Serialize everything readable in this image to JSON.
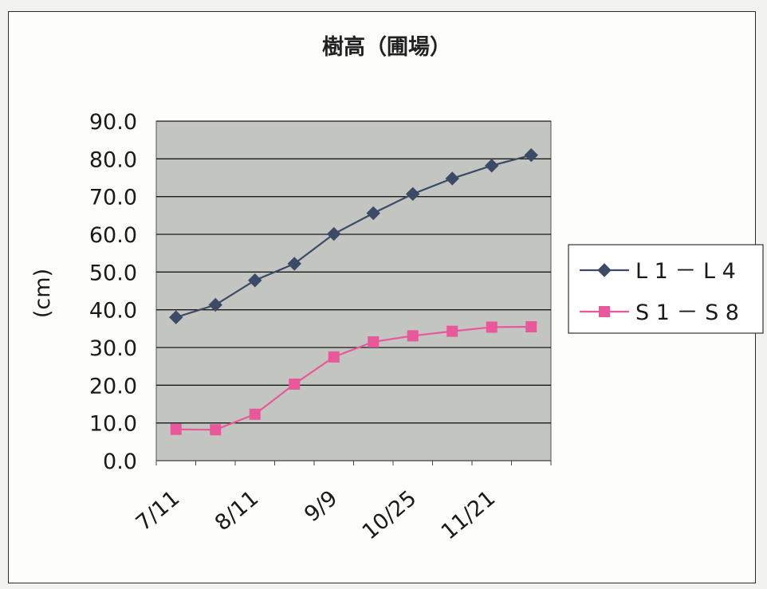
{
  "chart_data": {
    "type": "line",
    "title": "樹高（圃場）",
    "ylabel": "(cm)",
    "xlabel": "",
    "ylim": [
      0,
      90
    ],
    "yticks": [
      "0.0",
      "10.0",
      "20.0",
      "30.0",
      "40.0",
      "50.0",
      "60.0",
      "70.0",
      "80.0",
      "90.0"
    ],
    "x_tick_labels": [
      "7/11",
      "8/11",
      "9/9",
      "10/25",
      "11/21"
    ],
    "x_tick_label_points": [
      0,
      2,
      4,
      6,
      8
    ],
    "point_count": 10,
    "grid": true,
    "legend_position": "right",
    "series": [
      {
        "name": "L 1 － L 4",
        "color": "#3b4a66",
        "marker": "diamond",
        "values": [
          38.0,
          41.3,
          47.8,
          52.2,
          60.1,
          65.6,
          70.7,
          74.8,
          78.2,
          81.0
        ]
      },
      {
        "name": "S 1 － S 8",
        "color": "#e8589a",
        "marker": "square",
        "values": [
          8.3,
          8.2,
          12.3,
          20.3,
          27.5,
          31.5,
          33.1,
          34.3,
          35.4,
          35.5
        ]
      }
    ]
  },
  "colors": {
    "plot_background": "#c2c5c0",
    "gridline": "#1a1a1a"
  }
}
